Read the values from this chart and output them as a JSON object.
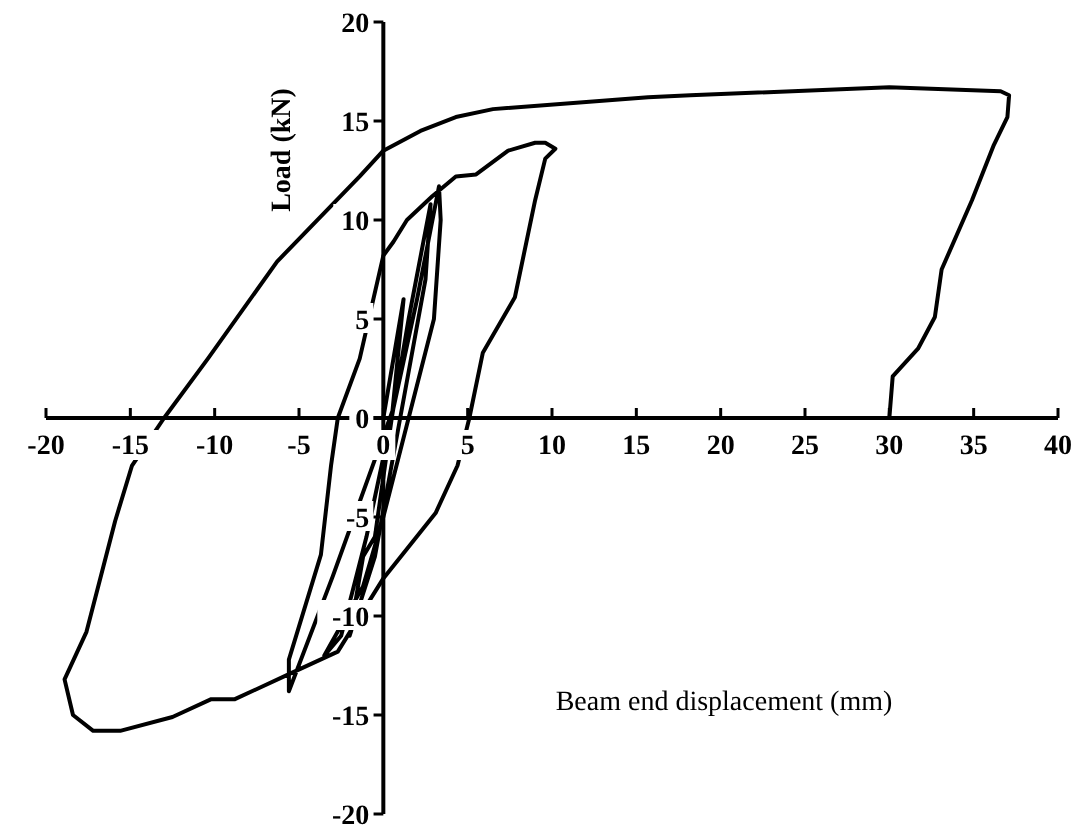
{
  "chart_data": {
    "type": "line",
    "xlabel": "Beam end displacement (mm)",
    "ylabel": "Load (kN)",
    "xlim": [
      -20,
      40
    ],
    "ylim": [
      -20,
      20
    ],
    "xticks": [
      -20,
      -15,
      -10,
      -5,
      0,
      5,
      10,
      15,
      20,
      25,
      30,
      35,
      40
    ],
    "yticks": [
      -20,
      -15,
      -10,
      -5,
      0,
      5,
      10,
      15,
      20
    ],
    "grid": false,
    "marker": "none",
    "line_style": "solid",
    "series": [
      {
        "color": "#000000",
        "x": [
          0,
          0.8,
          1.2,
          0.5,
          -0.5,
          -1.2,
          -2,
          -0.5,
          1,
          2.5,
          2.8,
          1.5,
          0.5,
          -1,
          -2.5,
          -3.5,
          -1.2,
          0,
          1.5,
          3,
          3.4,
          3.3,
          2,
          0.6,
          -3,
          -5.6,
          -5.6,
          -3.7,
          -3.1,
          -2.7,
          -1.4,
          0,
          0.6,
          1.4,
          2.9,
          4.3,
          5.5,
          7.4,
          9,
          9.6,
          10.2,
          9.6,
          9,
          7.8,
          5.9,
          5.1,
          4.4,
          3.1,
          0,
          -2.7,
          -5.5,
          -8.8,
          -10.2,
          -12.5,
          -15.6,
          -17.2,
          -18.4,
          -18.9,
          -17.6,
          -15.9,
          -14.9,
          -13,
          -10.4,
          -6.3,
          -1.4,
          0,
          2.2,
          4.3,
          6.5,
          15.7,
          18.2,
          30,
          36.6,
          37.1,
          37,
          36.2,
          34.9,
          33.1,
          32.7,
          31.7,
          30.2,
          30
        ],
        "values": [
          0,
          4,
          6,
          0,
          -6,
          -7,
          -11,
          -7,
          0,
          7,
          10.8,
          5,
          0,
          -6,
          -11,
          -12,
          -8.5,
          -5,
          0,
          5,
          10,
          11.7,
          6,
          0.5,
          -8,
          -13.8,
          -12.2,
          -6.9,
          -2.4,
          0,
          3,
          8.2,
          8.9,
          10,
          11.2,
          12.2,
          12.3,
          13.5,
          13.9,
          13.9,
          13.6,
          13.1,
          11,
          6.1,
          3.3,
          0,
          -2.4,
          -4.8,
          -8.1,
          -11.8,
          -12.9,
          -14.2,
          -14.2,
          -15.1,
          -15.8,
          -15.8,
          -15,
          -13.2,
          -10.8,
          -5.2,
          -2.4,
          0,
          3,
          7.9,
          12.2,
          13.5,
          14.5,
          15.2,
          15.6,
          16.2,
          16.3,
          16.7,
          16.5,
          16.3,
          15.2,
          13.8,
          11,
          7.5,
          5.1,
          3.5,
          2.1,
          0
        ]
      }
    ]
  }
}
